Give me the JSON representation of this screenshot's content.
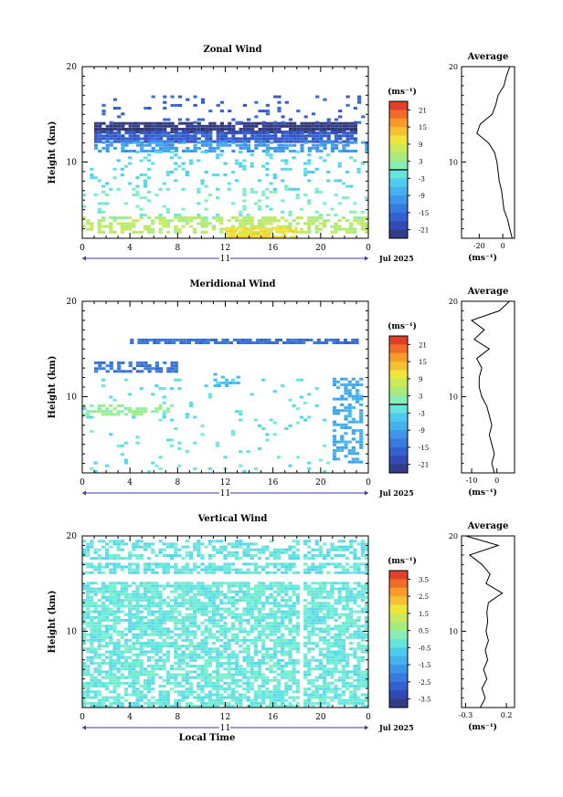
{
  "figure": {
    "xlabel": "Local Time",
    "date_label": "Jul 2025",
    "day_label": "11",
    "x_ticks": [
      "0",
      "4",
      "8",
      "12",
      "16",
      "20",
      "0"
    ],
    "avg_title": "Average",
    "avg_unit": "(ms⁻¹)",
    "cb_unit": "(ms⁻¹)"
  },
  "chart_data": [
    {
      "type": "heatmap",
      "key": "zonal",
      "title": "Zonal Wind",
      "ylabel": "Height (km)",
      "y_ticks": [
        "20",
        "10"
      ],
      "y_range_km": [
        2,
        20
      ],
      "x_range_hours": [
        0,
        24
      ],
      "colorbar": {
        "range": [
          -24,
          24
        ],
        "ticks": [
          "21",
          "15",
          "9",
          "3",
          "-3",
          "-9",
          "-15",
          "-21"
        ],
        "zero_line": true
      },
      "bands": [
        {
          "h0": 13.0,
          "h1": 14.0,
          "t0": 1,
          "t1": 23,
          "value": -23,
          "fill": 0.9
        },
        {
          "h0": 12.0,
          "h1": 13.0,
          "t0": 1,
          "t1": 23,
          "value": -17,
          "fill": 0.85
        },
        {
          "h0": 11.0,
          "h1": 12.0,
          "t0": 1,
          "t1": 24,
          "value": -10,
          "fill": 0.6
        },
        {
          "h0": 14.0,
          "h1": 17.0,
          "t0": 1,
          "t1": 24,
          "value": -16,
          "fill": 0.12
        },
        {
          "h0": 7.0,
          "h1": 11.0,
          "t0": 0,
          "t1": 24,
          "value": -3,
          "fill": 0.12
        },
        {
          "h0": 4.0,
          "h1": 7.0,
          "t0": 0,
          "t1": 24,
          "value": 0,
          "fill": 0.12
        },
        {
          "h0": 2.5,
          "h1": 4.0,
          "t0": 0,
          "t1": 24,
          "value": 6,
          "fill": 0.55
        },
        {
          "h0": 2.0,
          "h1": 3.0,
          "t0": 12,
          "t1": 18,
          "value": 11,
          "fill": 0.85
        }
      ],
      "average": {
        "xlim": [
          -35,
          10
        ],
        "x_ticks": [
          "-20",
          "0"
        ],
        "height_km": [
          2,
          3,
          4,
          5,
          6,
          7,
          8,
          9,
          10,
          11,
          12,
          13,
          14,
          15,
          16,
          17,
          18,
          19,
          20
        ],
        "values": [
          8,
          6,
          4,
          1,
          0,
          -1,
          -3,
          -4,
          -5,
          -7,
          -12,
          -22,
          -19,
          -9,
          -6,
          -4,
          1,
          3,
          6
        ]
      }
    },
    {
      "type": "heatmap",
      "key": "meridional",
      "title": "Meridional Wind",
      "ylabel": "Height (km)",
      "y_ticks": [
        "20",
        "10"
      ],
      "y_range_km": [
        2,
        20
      ],
      "x_range_hours": [
        0,
        24
      ],
      "colorbar": {
        "range": [
          -24,
          24
        ],
        "ticks": [
          "21",
          "15",
          "9",
          "3",
          "-3",
          "-9",
          "-15",
          "-21"
        ],
        "zero_line": true
      },
      "bands": [
        {
          "h0": 15.5,
          "h1": 16.0,
          "t0": 4,
          "t1": 23,
          "value": -15,
          "fill": 0.85
        },
        {
          "h0": 12.5,
          "h1": 13.5,
          "t0": 1,
          "t1": 8,
          "value": -14,
          "fill": 0.6
        },
        {
          "h0": 11.0,
          "h1": 12.5,
          "t0": 11,
          "t1": 13,
          "value": -7,
          "fill": 0.4
        },
        {
          "h0": 3.0,
          "h1": 12.0,
          "t0": 21,
          "t1": 23.5,
          "value": -8,
          "fill": 0.55
        },
        {
          "h0": 8.0,
          "h1": 9.0,
          "t0": 0,
          "t1": 8,
          "value": 3,
          "fill": 0.45
        },
        {
          "h0": 2.0,
          "h1": 12.0,
          "t0": 0,
          "t1": 21,
          "value": -2,
          "fill": 0.05
        }
      ],
      "average": {
        "xlim": [
          -14,
          7
        ],
        "x_ticks": [
          "-10",
          "0"
        ],
        "height_km": [
          2,
          3,
          4,
          5,
          6,
          7,
          8,
          9,
          10,
          11,
          12,
          13,
          14,
          15,
          16,
          17,
          18,
          19,
          20
        ],
        "values": [
          -1,
          -2,
          -1,
          -2,
          -3,
          -2,
          -3,
          -4,
          -6,
          -7,
          -7,
          -6,
          -8,
          -3,
          -9,
          -5,
          -10,
          1,
          5
        ]
      }
    },
    {
      "type": "heatmap",
      "key": "vertical",
      "title": "Vertical Wind",
      "ylabel": "Height (km)",
      "y_ticks": [
        "20",
        "10"
      ],
      "y_range_km": [
        2,
        20
      ],
      "x_range_hours": [
        0,
        24
      ],
      "colorbar": {
        "range": [
          -4,
          4
        ],
        "ticks": [
          "3.5",
          "2.5",
          "1.5",
          "0.5",
          "-0.5",
          "-1.5",
          "-2.5",
          "-3.5"
        ],
        "zero_line": false
      },
      "gap_hours": [
        18,
        18.5
      ],
      "bands": [
        {
          "h0": 17.5,
          "h1": 19.5,
          "t0": 0,
          "t1": 24,
          "value": -0.3,
          "fill": 0.55
        },
        {
          "h0": 16.0,
          "h1": 17.0,
          "t0": 0,
          "t1": 24,
          "value": -0.3,
          "fill": 0.7
        },
        {
          "h0": 2.0,
          "h1": 15.0,
          "t0": 0,
          "t1": 24,
          "value": -0.2,
          "fill": 0.7
        }
      ],
      "average": {
        "xlim": [
          -0.35,
          0.3
        ],
        "x_ticks": [
          "-0.3",
          "0.2"
        ],
        "height_km": [
          2,
          3,
          4,
          5,
          6,
          7,
          8,
          9,
          10,
          11,
          12,
          13,
          14,
          15,
          16,
          17,
          18,
          19,
          20
        ],
        "values": [
          -0.12,
          -0.06,
          -0.1,
          -0.04,
          -0.08,
          -0.03,
          -0.06,
          -0.02,
          -0.05,
          -0.03,
          -0.04,
          -0.02,
          0.15,
          -0.05,
          0.0,
          -0.1,
          -0.25,
          0.1,
          -0.3
        ]
      }
    }
  ]
}
